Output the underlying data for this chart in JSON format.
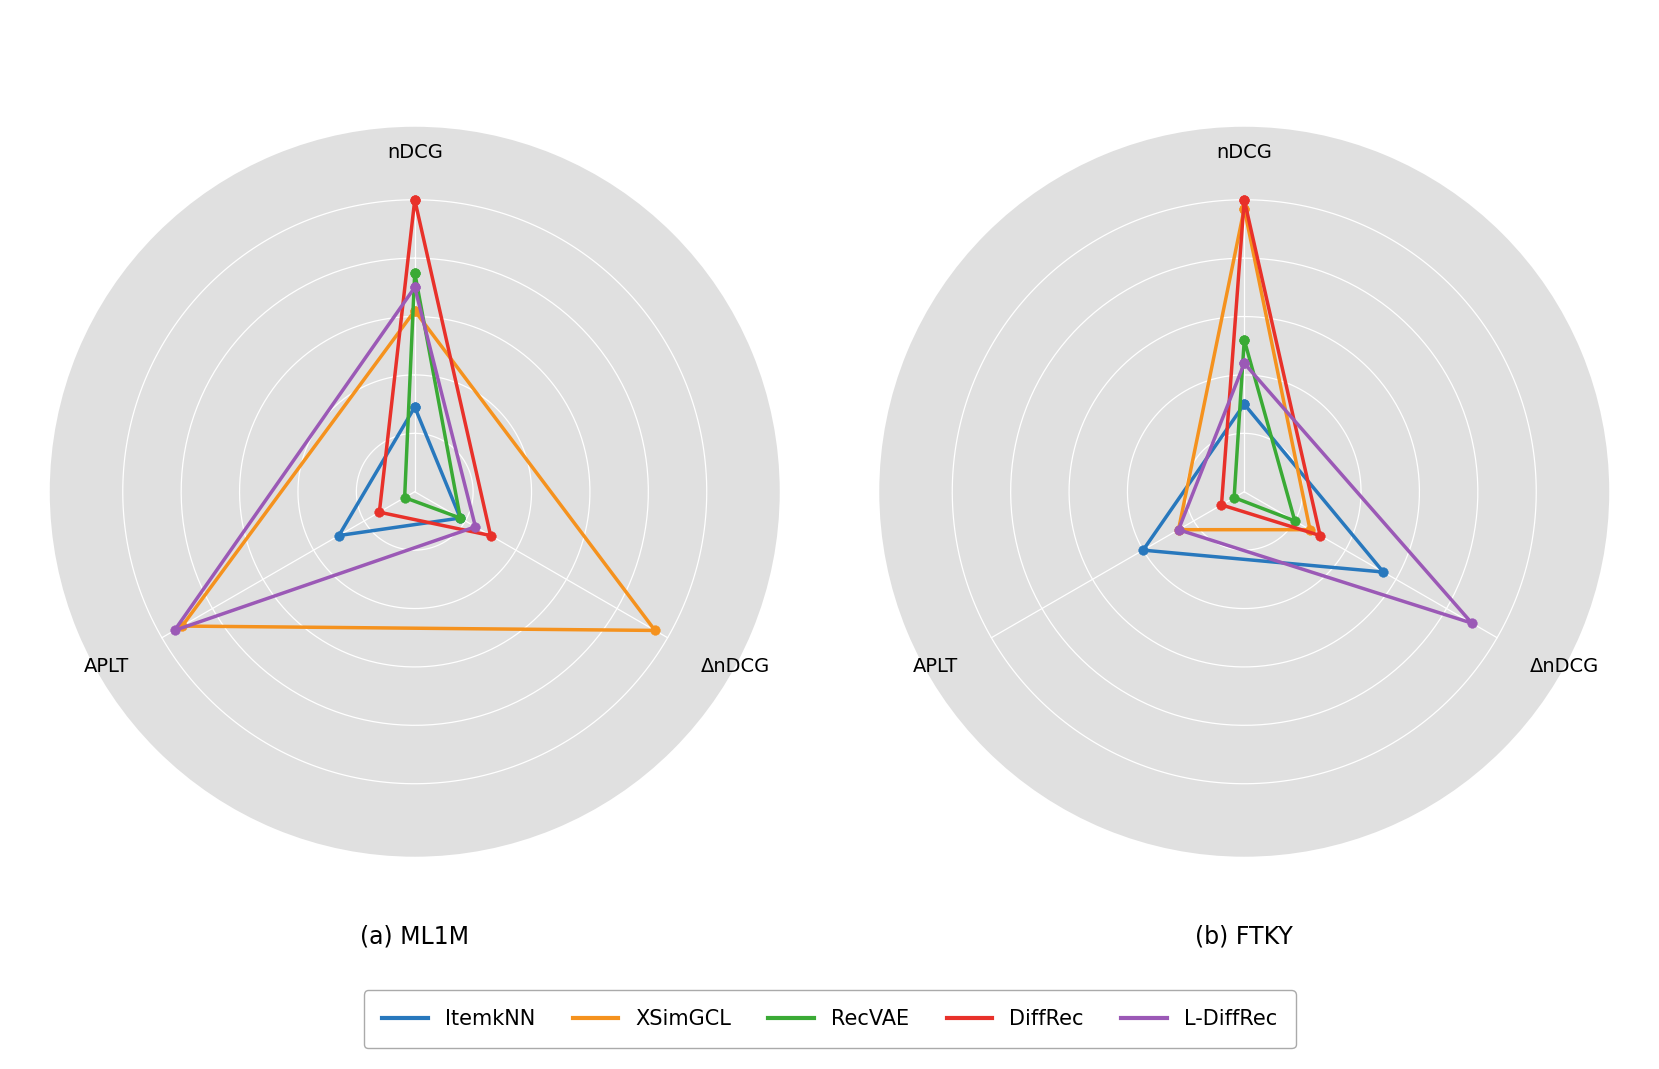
{
  "categories": [
    "nDCG",
    "ΔnDCG",
    "APLT"
  ],
  "models": [
    "ItemkNN",
    "XSimGCL",
    "RecVAE",
    "DiffRec",
    "L-DiffRec"
  ],
  "colors": [
    "#2878bd",
    "#f5921e",
    "#3aaa35",
    "#e8312a",
    "#9b59b6"
  ],
  "ml1m": {
    "ItemkNN": [
      0.29,
      0.18,
      0.3
    ],
    "XSimGCL": [
      0.62,
      0.95,
      0.92
    ],
    "RecVAE": [
      0.75,
      0.18,
      0.04
    ],
    "DiffRec": [
      1.0,
      0.3,
      0.14
    ],
    "L-DiffRec": [
      0.7,
      0.24,
      0.95
    ]
  },
  "ftky": {
    "ItemkNN": [
      0.3,
      0.55,
      0.4
    ],
    "XSimGCL": [
      0.97,
      0.26,
      0.26
    ],
    "RecVAE": [
      0.52,
      0.2,
      0.04
    ],
    "DiffRec": [
      1.0,
      0.3,
      0.09
    ],
    "L-DiffRec": [
      0.44,
      0.9,
      0.26
    ]
  },
  "subtitle_ml1m": "(a) ML1M",
  "subtitle_ftky": "(b) FTKY",
  "radar_bg_color": "#e0e0e0",
  "grid_color": "#ffffff",
  "n_rings": 5,
  "linewidth": 2.5,
  "marker_size": 7,
  "label_fontsize": 14,
  "subtitle_fontsize": 17,
  "legend_fontsize": 15
}
